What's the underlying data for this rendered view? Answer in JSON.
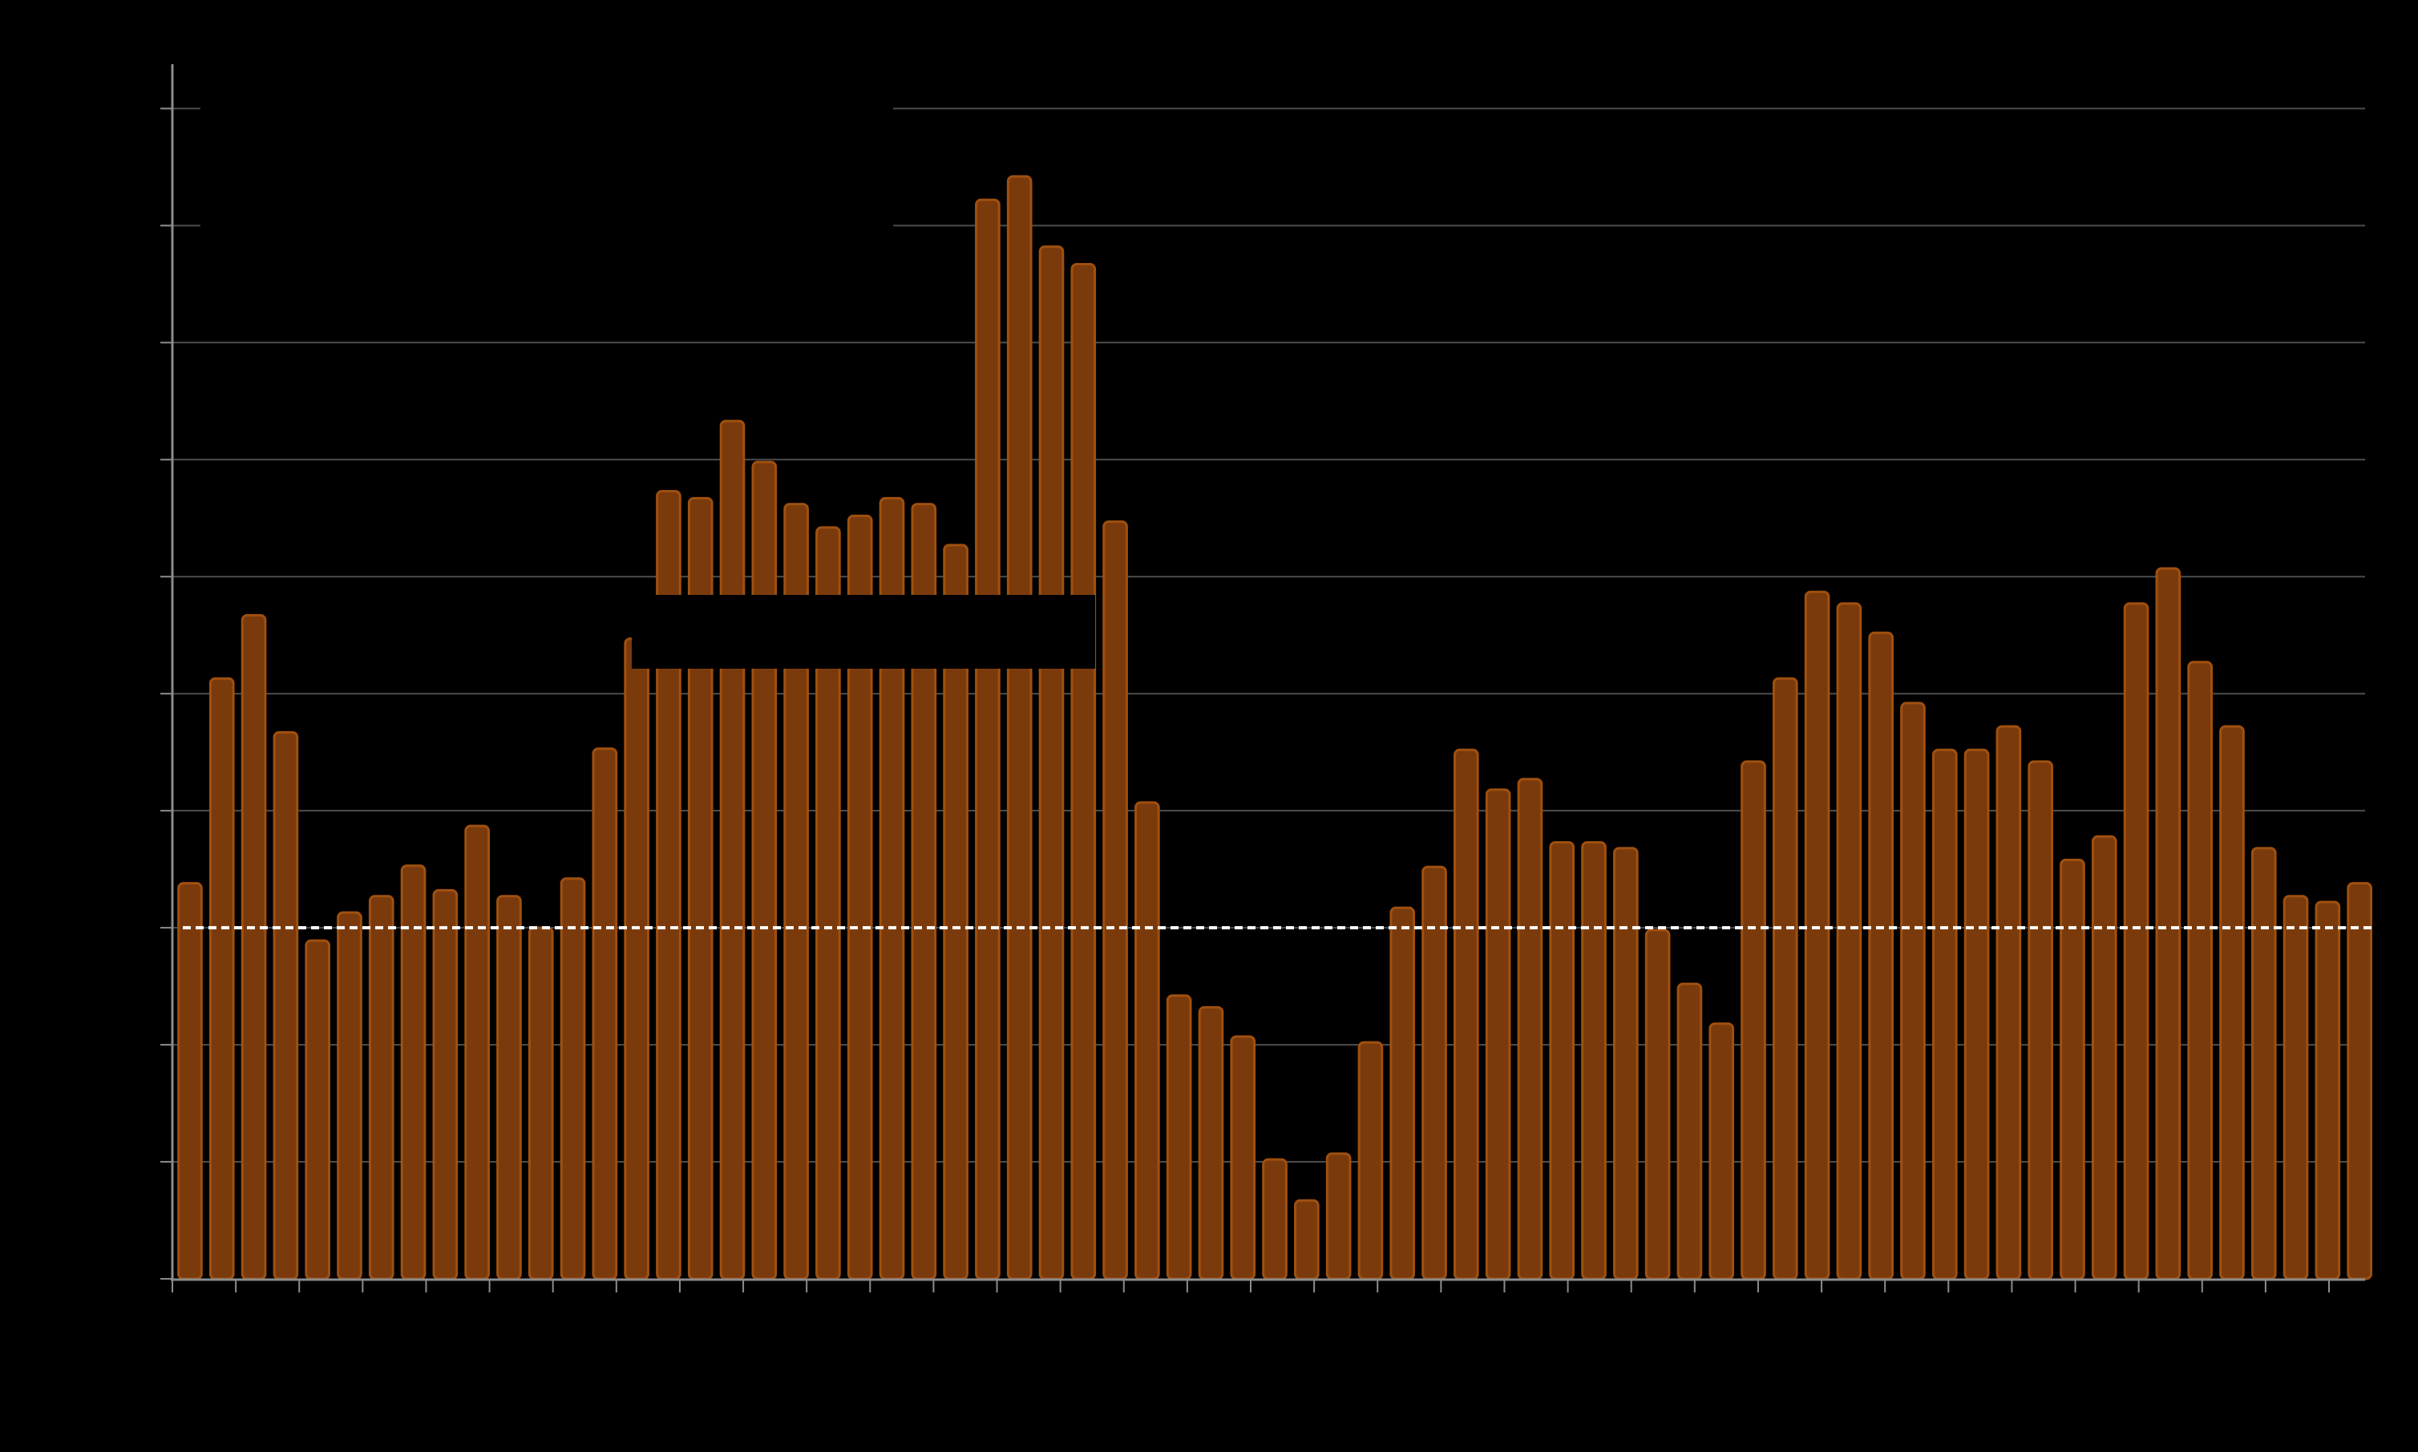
{
  "chart_data": {
    "type": "bar",
    "title": "",
    "xlabel": "",
    "ylabel": "",
    "ylim": [
      0,
      10.4
    ],
    "grid": true,
    "legend": "none",
    "reference_line": {
      "value": 3,
      "style": "dashed",
      "color": "#ffffff"
    },
    "colors": {
      "background": "#000000",
      "bar_fill": "#7a3a0c",
      "bar_edge": "#a0500f",
      "grid": "#4d4d4d",
      "axis": "#8c8c8c"
    },
    "values": [
      3.38,
      5.13,
      5.67,
      4.67,
      2.89,
      3.13,
      3.27,
      3.53,
      3.32,
      3.87,
      3.27,
      3.0,
      3.42,
      4.53,
      5.47,
      6.73,
      6.67,
      7.33,
      6.98,
      6.62,
      6.42,
      6.52,
      6.67,
      6.62,
      6.27,
      9.22,
      9.42,
      8.82,
      8.67,
      6.47,
      4.07,
      2.42,
      2.32,
      2.07,
      1.02,
      0.67,
      1.07,
      2.02,
      3.17,
      3.52,
      4.52,
      4.18,
      4.27,
      3.73,
      3.73,
      3.68,
      2.98,
      2.52,
      2.18,
      4.42,
      5.13,
      5.87,
      5.77,
      5.52,
      4.92,
      4.52,
      4.52,
      4.72,
      4.42,
      3.58,
      3.78,
      5.77,
      6.07,
      5.27,
      4.72,
      3.68,
      3.27,
      3.22,
      3.38
    ]
  }
}
